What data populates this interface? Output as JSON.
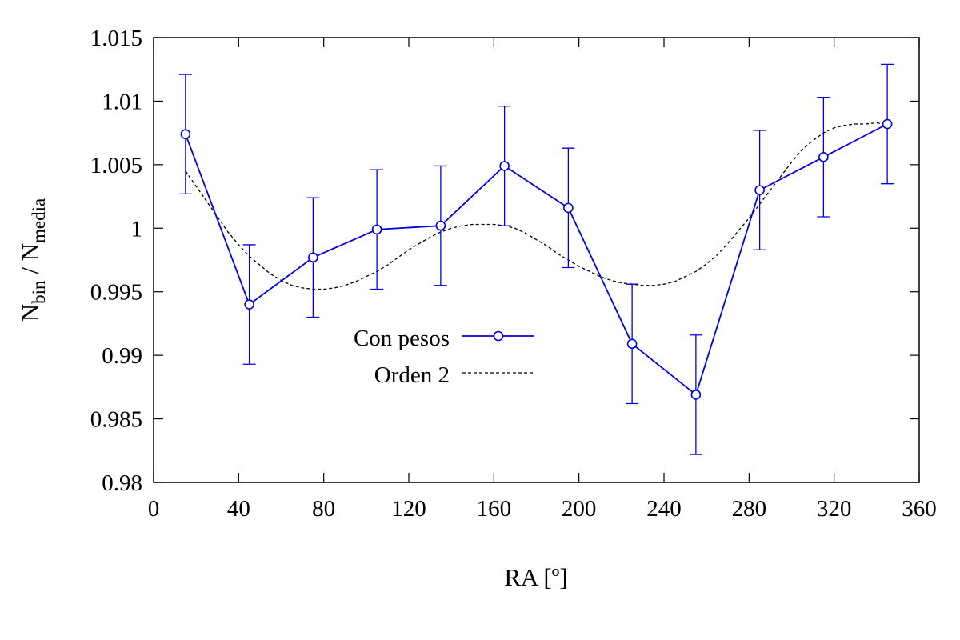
{
  "chart_data": {
    "type": "line",
    "xlabel": "RA [º]",
    "ylabel": {
      "main": "N",
      "sub1": "bin",
      "sep": " / N",
      "sub2": "media"
    },
    "xlim": [
      0,
      360
    ],
    "ylim": [
      0.98,
      1.015
    ],
    "xticks": [
      "0",
      "40",
      "80",
      "120",
      "160",
      "200",
      "240",
      "280",
      "320",
      "360"
    ],
    "xtick_values": [
      0,
      40,
      80,
      120,
      160,
      200,
      240,
      280,
      320,
      360
    ],
    "yticks": [
      "0.98",
      "0.985",
      "0.99",
      "0.995",
      "1",
      "1.005",
      "1.01",
      "1.015"
    ],
    "ytick_values": [
      0.98,
      0.985,
      0.99,
      0.995,
      1.0,
      1.005,
      1.01,
      1.015
    ],
    "grid": false,
    "legend_position": "center-left",
    "series": [
      {
        "name": "Con pesos",
        "color": "#0000dd",
        "marker": "open-circle",
        "line": "solid",
        "x": [
          15,
          45,
          75,
          105,
          135,
          165,
          195,
          225,
          255,
          285,
          315,
          345
        ],
        "y": [
          1.0074,
          0.994,
          0.9977,
          0.9999,
          1.0002,
          1.0049,
          1.0016,
          0.9909,
          0.9869,
          1.003,
          1.0056,
          1.0082
        ],
        "y_err": [
          0.0047,
          0.0047,
          0.0047,
          0.0047,
          0.0047,
          0.0047,
          0.0047,
          0.0047,
          0.0047,
          0.0047,
          0.0047,
          0.0047
        ]
      },
      {
        "name": "Orden 2",
        "color": "#000000",
        "line": "dashed",
        "x": [
          15,
          20,
          25,
          30,
          35,
          40,
          45,
          50,
          55,
          60,
          65,
          70,
          75,
          80,
          85,
          90,
          95,
          100,
          105,
          110,
          115,
          120,
          125,
          130,
          135,
          140,
          145,
          150,
          155,
          160,
          165,
          170,
          175,
          180,
          185,
          190,
          195,
          200,
          205,
          210,
          215,
          220,
          225,
          230,
          235,
          240,
          245,
          250,
          255,
          260,
          265,
          270,
          275,
          280,
          285,
          290,
          295,
          300,
          305,
          310,
          315,
          320,
          325,
          330,
          335,
          340,
          345
        ],
        "y": [
          1.0045,
          1.0033,
          1.0021,
          1.0009,
          0.9997,
          0.9987,
          0.9978,
          0.9971,
          0.9964,
          0.9959,
          0.9955,
          0.9953,
          0.9952,
          0.9952,
          0.9953,
          0.9955,
          0.9958,
          0.9962,
          0.9966,
          0.9971,
          0.9977,
          0.9983,
          0.9988,
          0.9993,
          0.9997,
          1.0,
          1.0002,
          1.0003,
          1.0003,
          1.0003,
          1.0002,
          1.0,
          0.9996,
          0.9991,
          0.9986,
          0.998,
          0.9975,
          0.997,
          0.9966,
          0.9962,
          0.9959,
          0.9957,
          0.9956,
          0.9955,
          0.9955,
          0.9956,
          0.9958,
          0.9962,
          0.9966,
          0.9972,
          0.9979,
          0.9988,
          0.9998,
          1.0008,
          1.0019,
          1.003,
          1.0041,
          1.0052,
          1.0062,
          1.0069,
          1.0075,
          1.0079,
          1.0081,
          1.0082,
          1.0082,
          1.0083,
          1.0081
        ]
      }
    ]
  }
}
